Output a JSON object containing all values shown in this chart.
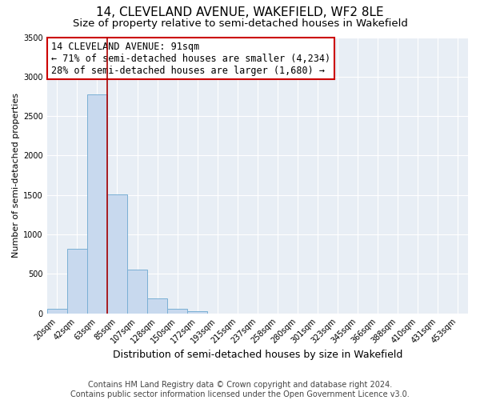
{
  "title": "14, CLEVELAND AVENUE, WAKEFIELD, WF2 8LE",
  "subtitle": "Size of property relative to semi-detached houses in Wakefield",
  "xlabel": "Distribution of semi-detached houses by size in Wakefield",
  "ylabel": "Number of semi-detached properties",
  "categories": [
    "20sqm",
    "42sqm",
    "63sqm",
    "85sqm",
    "107sqm",
    "128sqm",
    "150sqm",
    "172sqm",
    "193sqm",
    "215sqm",
    "237sqm",
    "258sqm",
    "280sqm",
    "301sqm",
    "323sqm",
    "345sqm",
    "366sqm",
    "388sqm",
    "410sqm",
    "431sqm",
    "453sqm"
  ],
  "values": [
    60,
    820,
    2770,
    1510,
    555,
    185,
    60,
    30,
    0,
    0,
    0,
    0,
    0,
    0,
    0,
    0,
    0,
    0,
    0,
    0,
    0
  ],
  "bar_color": "#c8d9ee",
  "bar_edge_color": "#7aafd4",
  "vline_color": "#aa0000",
  "vline_x_idx": 3,
  "annotation_title": "14 CLEVELAND AVENUE: 91sqm",
  "annotation_line1": "← 71% of semi-detached houses are smaller (4,234)",
  "annotation_line2": "28% of semi-detached houses are larger (1,680) →",
  "annotation_box_edge": "#cc0000",
  "annotation_box_bg": "white",
  "ylim": [
    0,
    3500
  ],
  "yticks": [
    0,
    500,
    1000,
    1500,
    2000,
    2500,
    3000,
    3500
  ],
  "footer_line1": "Contains HM Land Registry data © Crown copyright and database right 2024.",
  "footer_line2": "Contains public sector information licensed under the Open Government Licence v3.0.",
  "bg_color": "#ffffff",
  "plot_bg_color": "#e8eef5",
  "title_fontsize": 11,
  "subtitle_fontsize": 9.5,
  "xlabel_fontsize": 9,
  "ylabel_fontsize": 8,
  "annot_fontsize": 8.5,
  "footer_fontsize": 7,
  "tick_fontsize": 7
}
